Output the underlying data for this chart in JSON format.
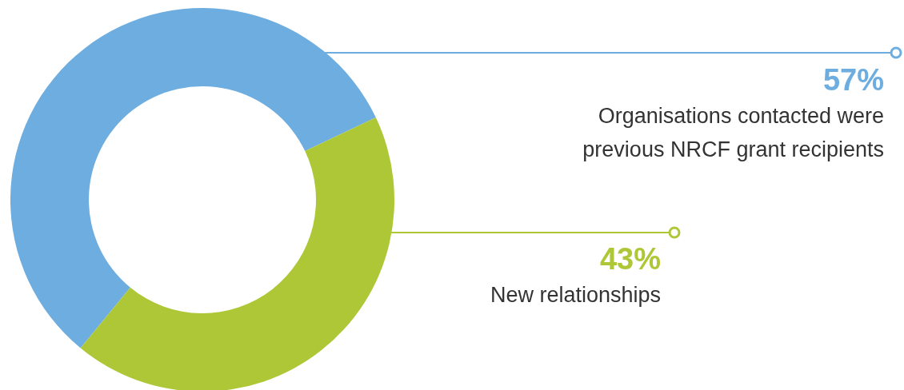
{
  "chart_data": {
    "type": "donut",
    "categories": [
      "Organisations contacted were previous NRCF grant recipients",
      "New relationships"
    ],
    "values": [
      57,
      43
    ],
    "value_labels": [
      "57%",
      "43%"
    ],
    "colors": [
      "#6daddf",
      "#adc737"
    ]
  }
}
